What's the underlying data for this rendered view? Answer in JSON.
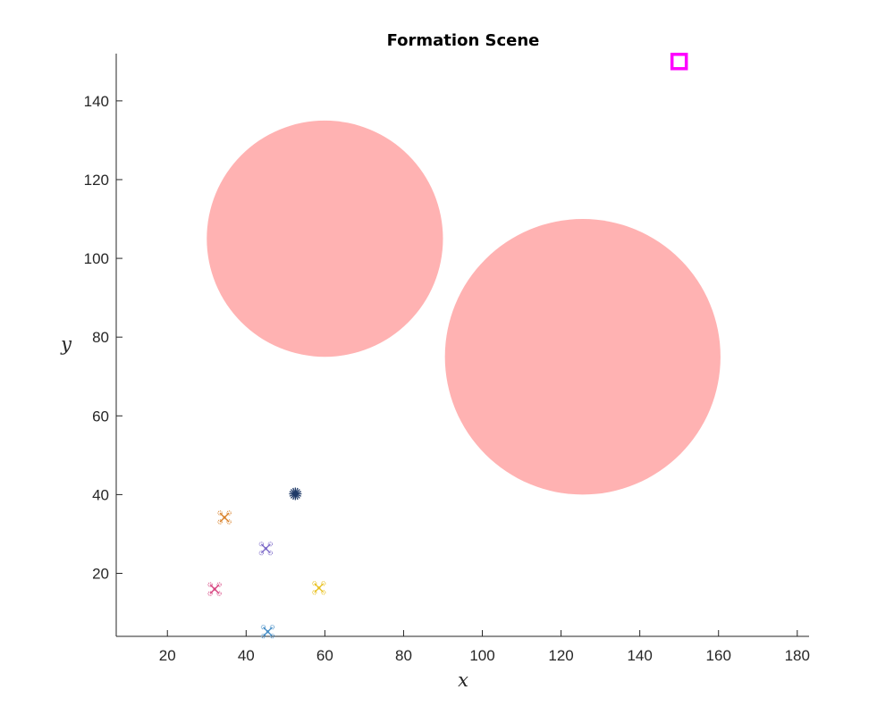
{
  "chart_data": {
    "type": "scatter",
    "title": "Formation Scene",
    "xlabel": "x",
    "ylabel": "y",
    "xlim": [
      7,
      183
    ],
    "ylim": [
      4,
      152
    ],
    "xticks": [
      20,
      40,
      60,
      80,
      100,
      120,
      140,
      160,
      180
    ],
    "yticks": [
      20,
      40,
      60,
      80,
      100,
      120,
      140
    ],
    "grid": false,
    "obstacles": [
      {
        "cx": 60,
        "cy": 105,
        "r": 30,
        "color": "#ffb2b2"
      },
      {
        "cx": 125.5,
        "cy": 75,
        "r": 35,
        "color": "#ffb2b2"
      }
    ],
    "goal": {
      "x": 150,
      "y": 150,
      "color": "#ff00ff",
      "marker": "square"
    },
    "leader": {
      "x": 52.5,
      "y": 40.2,
      "color": "#1f3a68",
      "marker": "asterisk-icon"
    },
    "agents": [
      {
        "x": 34.5,
        "y": 34.2,
        "color": "#d9822b",
        "marker": "quadrotor-icon"
      },
      {
        "x": 45,
        "y": 26.3,
        "color": "#7e6bc9",
        "marker": "quadrotor-icon"
      },
      {
        "x": 32,
        "y": 16,
        "color": "#d6427f",
        "marker": "quadrotor-icon"
      },
      {
        "x": 58.5,
        "y": 16.3,
        "color": "#e8c020",
        "marker": "quadrotor-icon"
      },
      {
        "x": 45.5,
        "y": 5.2,
        "color": "#4a90c8",
        "marker": "quadrotor-icon"
      }
    ]
  }
}
